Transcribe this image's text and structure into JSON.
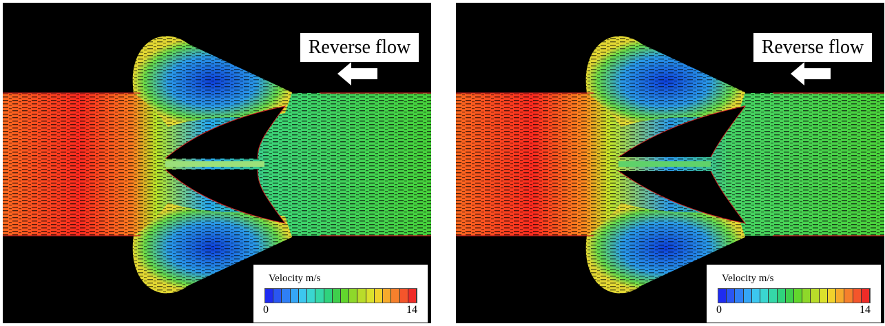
{
  "panels": [
    {
      "flow_label": "Reverse flow",
      "arrow_icon": "left-arrow-icon",
      "legend": {
        "title": "Velocity  m/s",
        "min": "0",
        "max": "14"
      }
    },
    {
      "flow_label": "Reverse flow",
      "arrow_icon": "left-arrow-icon",
      "legend": {
        "title": "Velocity  m/s",
        "min": "0",
        "max": "14"
      }
    }
  ],
  "colors": {
    "background": "#000000",
    "wall": "#cc2222",
    "colorbar": [
      "#1f2cf0",
      "#2a56f2",
      "#2f7ff5",
      "#35a6f6",
      "#3cc7ef",
      "#3ad6d0",
      "#35d8a8",
      "#2fd37d",
      "#3fcf4c",
      "#62d62d",
      "#8ed82a",
      "#b9dc2a",
      "#dbe12c",
      "#f1d22c",
      "#f6aa2c",
      "#f6802c",
      "#f4552b",
      "#ef2c28"
    ]
  }
}
